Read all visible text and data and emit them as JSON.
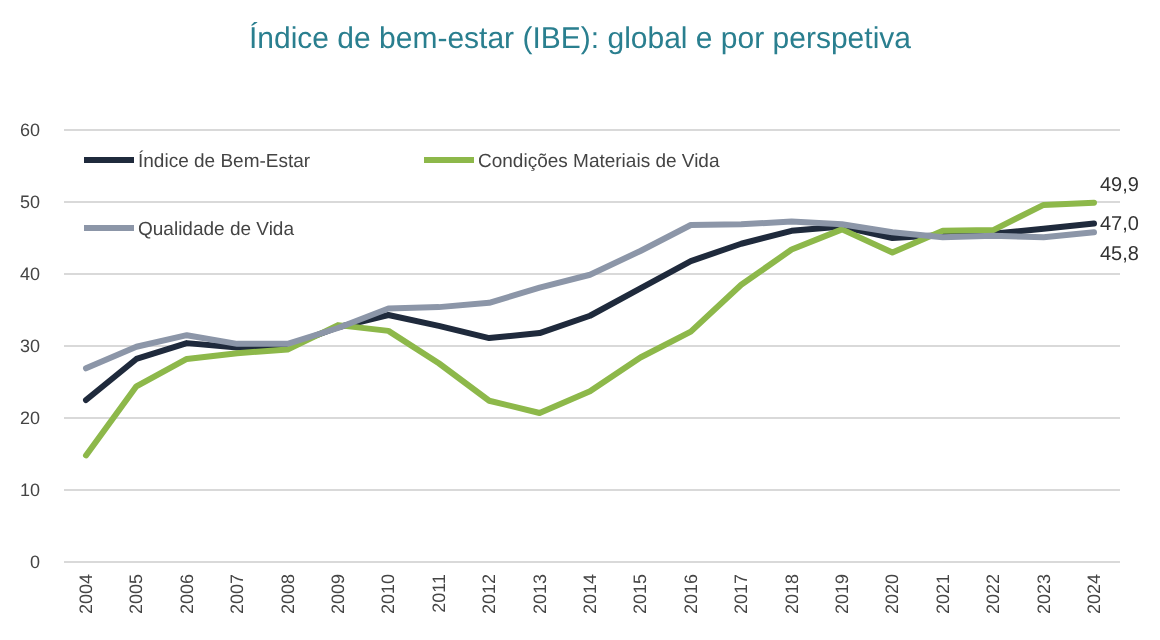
{
  "chart_data": {
    "type": "line",
    "title": "Índice de bem-estar (IBE): global e por perspetiva",
    "categories": [
      "2004",
      "2005",
      "2006",
      "2007",
      "2008",
      "2009",
      "2010",
      "2011",
      "2012",
      "2013",
      "2014",
      "2015",
      "2016",
      "2017",
      "2018",
      "2019",
      "2020",
      "2021",
      "2022",
      "2023",
      "2024"
    ],
    "series": [
      {
        "name": "Índice de Bem-Estar",
        "color": "#1f2a3c",
        "values": [
          22.5,
          28.2,
          30.4,
          29.8,
          30,
          32.6,
          34.3,
          32.8,
          31.1,
          31.8,
          34.2,
          38,
          41.8,
          44.2,
          46,
          46.6,
          45,
          45.4,
          45.6,
          46.3,
          47.0
        ],
        "value_labels": [
          null,
          null,
          null,
          null,
          null,
          null,
          null,
          null,
          null,
          null,
          null,
          null,
          null,
          null,
          null,
          null,
          null,
          null,
          null,
          null,
          "47,0"
        ]
      },
      {
        "name": "Condições Materiais de Vida",
        "color": "#8db84a",
        "values": [
          14.8,
          24.4,
          28.2,
          29,
          29.5,
          32.9,
          32.1,
          27.6,
          22.4,
          20.7,
          23.7,
          28.4,
          32,
          38.5,
          43.4,
          46.2,
          43,
          46,
          46.1,
          49.6,
          49.9
        ],
        "value_labels": [
          null,
          null,
          null,
          null,
          null,
          null,
          null,
          null,
          null,
          null,
          null,
          null,
          null,
          null,
          null,
          null,
          null,
          null,
          null,
          null,
          "49,9"
        ]
      },
      {
        "name": "Qualidade de Vida",
        "color": "#8c96a8",
        "values": [
          26.9,
          29.9,
          31.5,
          30.3,
          30.3,
          32.5,
          35.2,
          35.4,
          36,
          38.1,
          39.9,
          43.2,
          46.8,
          46.9,
          47.3,
          46.9,
          45.8,
          45.1,
          45.3,
          45.1,
          45.8
        ],
        "value_labels": [
          null,
          null,
          null,
          null,
          null,
          null,
          null,
          null,
          null,
          null,
          null,
          null,
          null,
          null,
          null,
          null,
          null,
          null,
          null,
          null,
          "45,8"
        ]
      }
    ],
    "ylim": [
      0,
      60
    ],
    "yticks": [
      0,
      10,
      20,
      30,
      40,
      50,
      60
    ],
    "grid": "y",
    "legend": "top left",
    "marker": "none",
    "line_style": "solid"
  }
}
